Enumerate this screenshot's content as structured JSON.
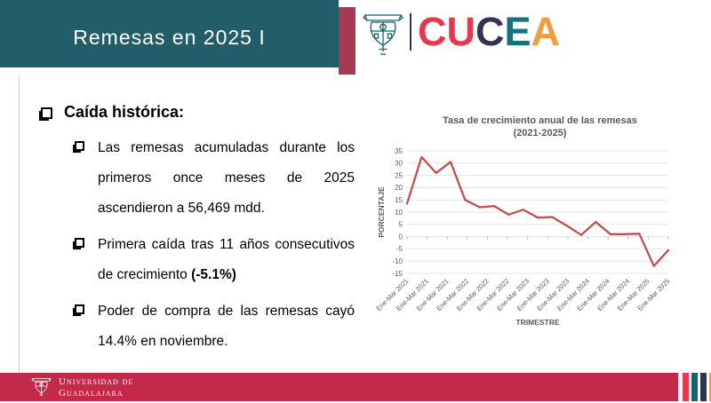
{
  "header": {
    "title": "Remesas en 2025 I",
    "band_color": "#215e6a",
    "accent_color": "#a63a52"
  },
  "logo": {
    "crest_color": "#1a5f6e",
    "divider_color": "#343353",
    "letters": [
      {
        "ch": "C",
        "color": "#e8384f"
      },
      {
        "ch": "U",
        "color": "#e8384f"
      },
      {
        "ch": "C",
        "color": "#343353"
      },
      {
        "ch": "E",
        "color": "#17707f"
      },
      {
        "ch": "A",
        "color": "#f29d3d"
      }
    ]
  },
  "content": {
    "heading": "Caída histórica:",
    "bullets": [
      {
        "text": "Las remesas acumuladas durante los primeros once meses de 2025 ascendieron a 56,469 mdd.",
        "bold": ""
      },
      {
        "text": "Primera caída tras 11 años consecutivos de crecimiento ",
        "bold": "(-5.1%)"
      },
      {
        "text": "Poder de compra de las remesas cayó 14.4% en noviembre.",
        "bold": ""
      }
    ]
  },
  "chart_data": {
    "type": "line",
    "title": "Tasa de crecimiento anual de las remesas",
    "subtitle": "(2021-2025)",
    "xlabel": "TRIMESTRE",
    "ylabel": "PORCENTAJE",
    "ylim": [
      -15,
      35
    ],
    "y_ticks": [
      35,
      30,
      25,
      20,
      15,
      10,
      5,
      0,
      -5,
      -10,
      -15
    ],
    "x_tick_labels": [
      "Ene-Mar 2021",
      "Ene-Mar 2021",
      "Ene-Mar 2021",
      "Ene-Mar 2022",
      "Ene-Mar 2022",
      "Ene-Mar 2022",
      "Ene-Mar 2023",
      "Ene-Mar 2023",
      "Ene-Mar 2023",
      "Ene-Mar 2024",
      "Ene-Mar 2024",
      "Ene-Mar 2024",
      "Ene-Mar 2025",
      "Ene-Mar 2025"
    ],
    "values": [
      13.5,
      32.5,
      26,
      30.5,
      15,
      12,
      12.5,
      9,
      11,
      7.8,
      8,
      4.5,
      0.7,
      6,
      1,
      1,
      1.2,
      -12,
      -5.5
    ],
    "line_color": "#c0504d",
    "grid": true,
    "legend": "none"
  },
  "footer": {
    "org_line1": "Universidad de",
    "org_line2": "Guadalajara",
    "band_color": "#c5294a",
    "accent_bars": [
      "#e8384f",
      "#1a5f6e",
      "#2f3353",
      "#f29d3d"
    ]
  }
}
